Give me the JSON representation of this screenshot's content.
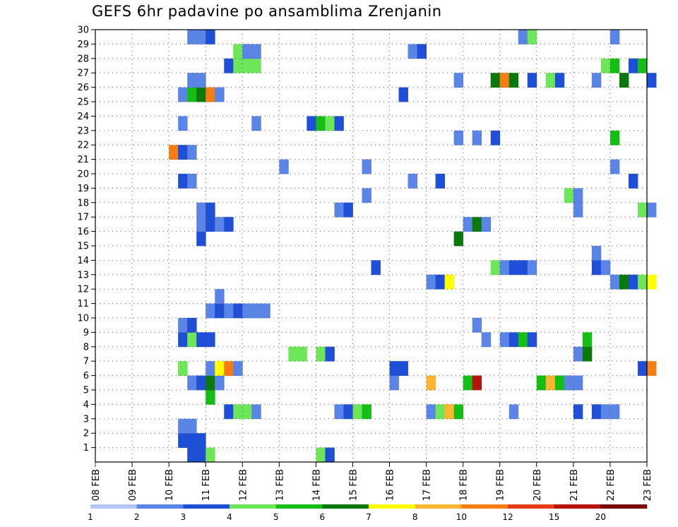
{
  "chart_data": {
    "type": "heatmap",
    "title": "GEFS 6hr padavine po ansamblima Zrenjanin",
    "x_ticks": [
      "08 FEB",
      "09 FEB",
      "10 FEB",
      "11 FEB",
      "12 FEB",
      "13 FEB",
      "14 FEB",
      "15 FEB",
      "16 FEB",
      "17 FEB",
      "18 FEB",
      "19 FEB",
      "20 FEB",
      "21 FEB",
      "22 FEB",
      "23 FEB"
    ],
    "x_range": [
      "08 FEB 00Z",
      "23 FEB 00Z"
    ],
    "y_ticks": [
      1,
      2,
      3,
      4,
      5,
      6,
      7,
      8,
      9,
      10,
      11,
      12,
      13,
      14,
      15,
      16,
      17,
      18,
      19,
      20,
      21,
      22,
      23,
      24,
      25,
      26,
      27,
      28,
      29,
      30
    ],
    "y_range": [
      0,
      30
    ],
    "x_step_hours": 6,
    "grid": true,
    "color_scale": {
      "labels": [
        "1",
        "2",
        "3",
        "4",
        "5",
        "6",
        "7",
        "8",
        "10",
        "12",
        "15",
        "20"
      ],
      "colors": [
        "#b4c6f5",
        "#5a84e6",
        "#1e4fd6",
        "#6ee65a",
        "#14be14",
        "#0a780a",
        "#ffff00",
        "#ffb432",
        "#f57d14",
        "#e63c14",
        "#b4140a",
        "#780a0a"
      ]
    },
    "cells": [
      [
        0,
        10,
        2
      ],
      [
        0,
        11,
        2
      ],
      [
        0,
        12,
        3
      ],
      [
        0,
        24,
        3
      ],
      [
        0,
        25,
        2
      ],
      [
        1,
        9,
        2
      ],
      [
        1,
        10,
        2
      ],
      [
        1,
        11,
        2
      ],
      [
        2,
        9,
        1
      ],
      [
        2,
        10,
        1
      ],
      [
        3,
        14,
        2
      ],
      [
        3,
        15,
        3
      ],
      [
        3,
        16,
        3
      ],
      [
        3,
        17,
        1
      ],
      [
        3,
        26,
        1
      ],
      [
        3,
        27,
        2
      ],
      [
        3,
        28,
        3
      ],
      [
        3,
        29,
        4
      ],
      [
        3,
        36,
        1
      ],
      [
        3,
        37,
        3
      ],
      [
        3,
        38,
        7
      ],
      [
        3,
        39,
        4
      ],
      [
        3,
        45,
        1
      ],
      [
        3,
        52,
        2
      ],
      [
        3,
        54,
        2
      ],
      [
        3,
        55,
        1
      ],
      [
        3,
        56,
        1
      ],
      [
        4,
        12,
        4
      ],
      [
        5,
        10,
        1
      ],
      [
        5,
        11,
        2
      ],
      [
        5,
        12,
        5
      ],
      [
        5,
        13,
        1
      ],
      [
        5,
        32,
        1
      ],
      [
        5,
        36,
        7
      ],
      [
        5,
        40,
        4
      ],
      [
        5,
        41,
        10
      ],
      [
        5,
        48,
        4
      ],
      [
        5,
        49,
        7
      ],
      [
        5,
        50,
        4
      ],
      [
        5,
        51,
        1
      ],
      [
        5,
        52,
        1
      ],
      [
        6,
        9,
        3
      ],
      [
        6,
        12,
        1
      ],
      [
        6,
        13,
        6
      ],
      [
        6,
        14,
        8
      ],
      [
        6,
        15,
        1
      ],
      [
        6,
        32,
        2
      ],
      [
        6,
        33,
        2
      ],
      [
        6,
        59,
        2
      ],
      [
        6,
        60,
        8
      ],
      [
        7,
        21,
        3
      ],
      [
        7,
        22,
        3
      ],
      [
        7,
        24,
        3
      ],
      [
        7,
        25,
        2
      ],
      [
        7,
        52,
        1
      ],
      [
        7,
        53,
        5
      ],
      [
        8,
        9,
        2
      ],
      [
        8,
        10,
        3
      ],
      [
        8,
        11,
        2
      ],
      [
        8,
        12,
        2
      ],
      [
        8,
        42,
        1
      ],
      [
        8,
        44,
        1
      ],
      [
        8,
        45,
        2
      ],
      [
        8,
        46,
        4
      ],
      [
        8,
        47,
        2
      ],
      [
        8,
        53,
        4
      ],
      [
        9,
        9,
        1
      ],
      [
        9,
        10,
        2
      ],
      [
        9,
        41,
        1
      ],
      [
        10,
        12,
        1
      ],
      [
        10,
        13,
        2
      ],
      [
        10,
        14,
        1
      ],
      [
        10,
        15,
        2
      ],
      [
        10,
        16,
        1
      ],
      [
        10,
        17,
        1
      ],
      [
        10,
        18,
        1
      ],
      [
        11,
        13,
        1
      ],
      [
        12,
        36,
        1
      ],
      [
        12,
        37,
        2
      ],
      [
        12,
        38,
        6
      ],
      [
        12,
        56,
        1
      ],
      [
        12,
        57,
        5
      ],
      [
        12,
        58,
        2
      ],
      [
        12,
        59,
        3
      ],
      [
        12,
        60,
        6
      ],
      [
        13,
        30,
        2
      ],
      [
        13,
        43,
        3
      ],
      [
        13,
        44,
        1
      ],
      [
        13,
        45,
        2
      ],
      [
        13,
        46,
        2
      ],
      [
        13,
        47,
        1
      ],
      [
        13,
        54,
        2
      ],
      [
        13,
        55,
        1
      ],
      [
        14,
        54,
        1
      ],
      [
        15,
        11,
        2
      ],
      [
        15,
        39,
        5
      ],
      [
        16,
        11,
        1
      ],
      [
        16,
        12,
        2
      ],
      [
        16,
        13,
        1
      ],
      [
        16,
        14,
        2
      ],
      [
        16,
        40,
        1
      ],
      [
        16,
        41,
        5
      ],
      [
        16,
        42,
        1
      ],
      [
        17,
        11,
        1
      ],
      [
        17,
        12,
        2
      ],
      [
        17,
        26,
        1
      ],
      [
        17,
        27,
        2
      ],
      [
        17,
        52,
        1
      ],
      [
        17,
        59,
        3
      ],
      [
        17,
        60,
        1
      ],
      [
        18,
        29,
        1
      ],
      [
        18,
        51,
        3
      ],
      [
        18,
        52,
        1
      ],
      [
        19,
        9,
        2
      ],
      [
        19,
        10,
        1
      ],
      [
        19,
        34,
        1
      ],
      [
        19,
        37,
        2
      ],
      [
        19,
        58,
        2
      ],
      [
        20,
        20,
        1
      ],
      [
        20,
        29,
        1
      ],
      [
        20,
        56,
        1
      ],
      [
        21,
        8,
        8
      ],
      [
        21,
        9,
        2
      ],
      [
        21,
        10,
        1
      ],
      [
        22,
        39,
        1
      ],
      [
        22,
        41,
        1
      ],
      [
        22,
        43,
        2
      ],
      [
        22,
        56,
        4
      ],
      [
        23,
        9,
        1
      ],
      [
        23,
        17,
        1
      ],
      [
        23,
        23,
        2
      ],
      [
        23,
        24,
        4
      ],
      [
        23,
        25,
        3
      ],
      [
        23,
        26,
        2
      ],
      [
        25,
        9,
        1
      ],
      [
        25,
        10,
        4
      ],
      [
        25,
        11,
        5
      ],
      [
        25,
        12,
        8
      ],
      [
        25,
        13,
        1
      ],
      [
        25,
        33,
        2
      ],
      [
        26,
        10,
        1
      ],
      [
        26,
        11,
        1
      ],
      [
        26,
        39,
        1
      ],
      [
        26,
        43,
        5
      ],
      [
        26,
        44,
        8
      ],
      [
        26,
        45,
        5
      ],
      [
        26,
        47,
        2
      ],
      [
        26,
        49,
        3
      ],
      [
        26,
        50,
        2
      ],
      [
        26,
        54,
        1
      ],
      [
        26,
        57,
        5
      ],
      [
        26,
        60,
        2
      ],
      [
        27,
        14,
        2
      ],
      [
        27,
        15,
        3
      ],
      [
        27,
        16,
        3
      ],
      [
        27,
        17,
        3
      ],
      [
        27,
        55,
        3
      ],
      [
        27,
        56,
        4
      ],
      [
        27,
        58,
        2
      ],
      [
        27,
        59,
        4
      ],
      [
        28,
        15,
        3
      ],
      [
        28,
        16,
        1
      ],
      [
        28,
        17,
        1
      ],
      [
        28,
        34,
        1
      ],
      [
        28,
        35,
        2
      ],
      [
        29,
        10,
        1
      ],
      [
        29,
        11,
        1
      ],
      [
        29,
        12,
        2
      ],
      [
        29,
        46,
        1
      ],
      [
        29,
        47,
        3
      ],
      [
        29,
        56,
        1
      ]
    ]
  }
}
